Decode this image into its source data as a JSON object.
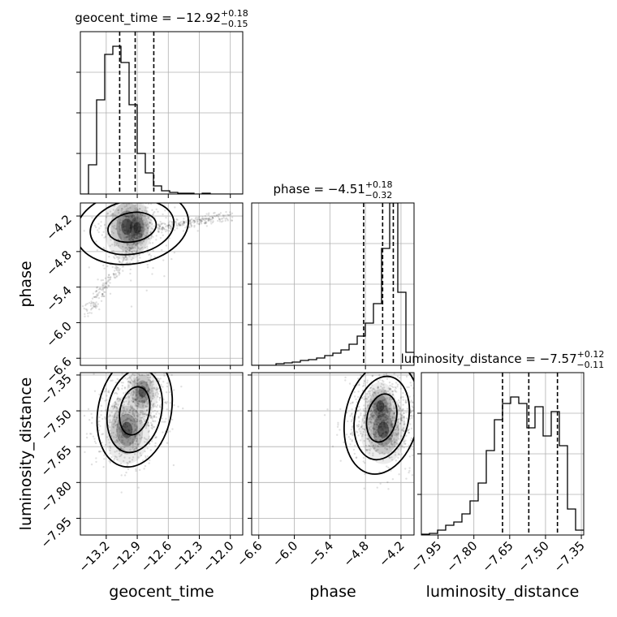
{
  "chart_data": {
    "type": "corner",
    "parameters": [
      {
        "name": "geocent_time",
        "median": "−12.92",
        "plus": "+0.18",
        "minus": "−0.15",
        "title_prefix": "geocent_time = ",
        "range": [
          -13.45,
          -11.88
        ],
        "ticks": [
          -13.2,
          -12.9,
          -12.6,
          -12.3,
          -12.0
        ],
        "tick_labels": [
          "−13.2",
          "−12.9",
          "−12.6",
          "−12.3",
          "−12.0"
        ],
        "quantiles": [
          -13.07,
          -12.92,
          -12.74
        ],
        "hist_edges_start": -13.45,
        "hist_bin_width": 0.0785,
        "hist": [
          0.0,
          0.18,
          0.58,
          0.86,
          0.91,
          0.81,
          0.55,
          0.25,
          0.13,
          0.05,
          0.02,
          0.01,
          0.005,
          0.005,
          0.0,
          0.005,
          0.0,
          0.0,
          0.0,
          0.0
        ]
      },
      {
        "name": "phase",
        "median": "−4.51",
        "plus": "+0.18",
        "minus": "−0.32",
        "title_prefix": "phase = ",
        "range": [
          -6.72,
          -3.98
        ],
        "ticks": [
          -6.6,
          -6.0,
          -5.4,
          -4.8,
          -4.2
        ],
        "tick_labels": [
          "−6.6",
          "−6.0",
          "−5.4",
          "−4.8",
          "−4.2"
        ],
        "quantiles": [
          -4.83,
          -4.51,
          -4.33
        ],
        "hist_edges_start": -6.72,
        "hist_bin_width": 0.137,
        "hist": [
          0.0,
          0.0,
          0.0,
          0.01,
          0.015,
          0.02,
          0.03,
          0.035,
          0.045,
          0.06,
          0.075,
          0.095,
          0.13,
          0.18,
          0.26,
          0.38,
          0.72,
          1.0,
          0.45,
          0.08
        ]
      },
      {
        "name": "luminosity_distance",
        "median": "−7.57",
        "plus": "+0.12",
        "minus": "−0.11",
        "title_prefix": "luminosity_distance = ",
        "range": [
          -8.02,
          -7.34
        ],
        "ticks": [
          -7.95,
          -7.8,
          -7.65,
          -7.5,
          -7.35
        ],
        "tick_labels": [
          "−7.95",
          "−7.80",
          "−7.65",
          "−7.50",
          "−7.35"
        ],
        "quantiles": [
          -7.68,
          -7.57,
          -7.45
        ],
        "hist_edges_start": -8.02,
        "hist_bin_width": 0.034,
        "hist": [
          0.005,
          0.01,
          0.03,
          0.06,
          0.08,
          0.13,
          0.21,
          0.32,
          0.52,
          0.71,
          0.81,
          0.85,
          0.81,
          0.66,
          0.79,
          0.61,
          0.76,
          0.55,
          0.16,
          0.03
        ]
      }
    ],
    "diag_ylim": [
      0,
      1.0
    ],
    "diag_yticks": [
      0.25,
      0.5,
      0.75
    ],
    "samples_2d": [
      {
        "pair": [
          "geocent_time",
          "phase"
        ],
        "mode_centers": [
          [
            -13.0,
            -4.38
          ],
          [
            -12.9,
            -4.4
          ]
        ],
        "tail_from": [
          -13.4,
          -5.9
        ],
        "tail_to": [
          -12.85,
          -4.4
        ],
        "arm_from": [
          -12.7,
          -4.4
        ],
        "arm_to": [
          -12.0,
          -4.2
        ]
      },
      {
        "pair": [
          "geocent_time",
          "luminosity_distance"
        ],
        "mode_centers": [
          [
            -13.0,
            -7.58
          ],
          [
            -12.85,
            -7.42
          ]
        ]
      },
      {
        "pair": [
          "phase",
          "luminosity_distance"
        ],
        "mode_centers": [
          [
            -4.5,
            -7.58
          ],
          [
            -4.55,
            -7.48
          ]
        ]
      }
    ],
    "grid": true
  }
}
